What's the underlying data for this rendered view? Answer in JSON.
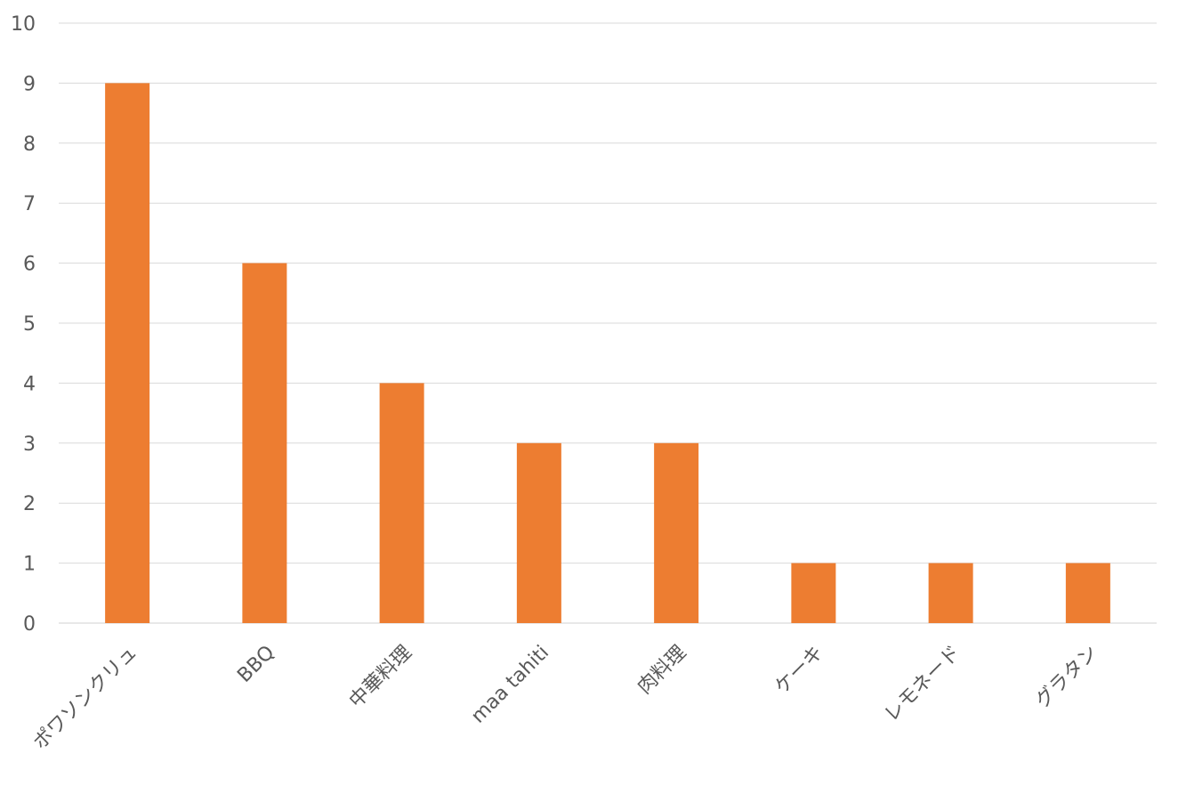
{
  "chart_data": {
    "type": "bar",
    "categories": [
      "ポワソンクリュ",
      "BBQ",
      "中華料理",
      "maa tahiti",
      "肉料理",
      "ケーキ",
      "レモネード",
      "グラタン"
    ],
    "values": [
      9,
      6,
      4,
      3,
      3,
      1,
      1,
      1
    ],
    "ylim": [
      0,
      10
    ],
    "yticks": [
      0,
      1,
      2,
      3,
      4,
      5,
      6,
      7,
      8,
      9,
      10
    ],
    "grid": true,
    "legend": "none",
    "bar_color": "#ED7D31",
    "grid_color": "#D9D9D9",
    "label_color": "#595959"
  }
}
